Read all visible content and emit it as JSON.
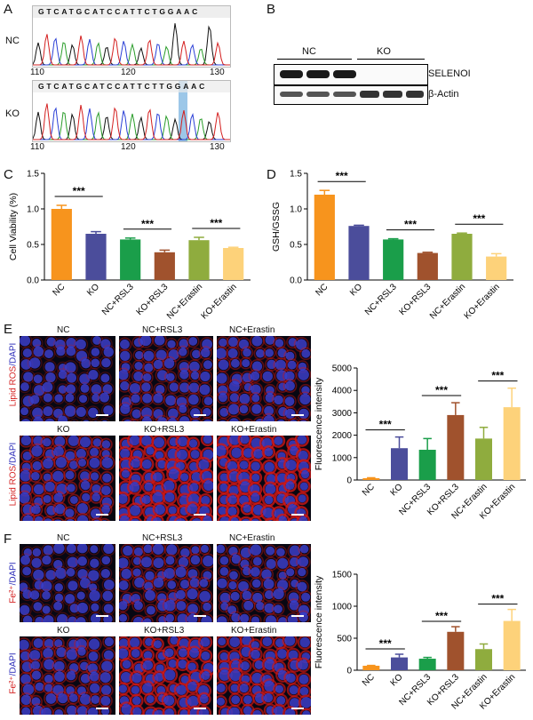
{
  "panels": {
    "A": "A",
    "B": "B",
    "C": "C",
    "D": "D",
    "E": "E",
    "F": "F"
  },
  "panelA": {
    "rows": [
      {
        "label": "NC",
        "sequence": "GTCATGCATCCATTCTGGAAC",
        "ticks": [
          "110",
          "120",
          "130"
        ]
      },
      {
        "label": "KO",
        "sequence": "GTCATGCATCCATTCTTGGAAC",
        "ticks": [
          "110",
          "120",
          "130"
        ]
      }
    ],
    "highlight_color": "#9cc7e8"
  },
  "panelB": {
    "groups": [
      "NC",
      "KO"
    ],
    "bands": [
      "SELENOI",
      "β-Actin"
    ]
  },
  "panelE": {
    "columns": [
      "NC",
      "NC+RSL3",
      "NC+Erastin"
    ],
    "columns_row2": [
      "KO",
      "KO+RSL3",
      "KO+Erastin"
    ],
    "stain_red": "Lipid ROS",
    "stain_blue": "/DAPI"
  },
  "panelF": {
    "columns": [
      "NC",
      "NC+RSL3",
      "NC+Erastin"
    ],
    "columns_row2": [
      "KO",
      "KO+RSL3",
      "KO+Erastin"
    ],
    "stain_red": "Fe²⁺",
    "stain_blue": "/DAPI"
  },
  "chart_data": [
    {
      "id": "C",
      "type": "bar",
      "categories": [
        "NC",
        "KO",
        "NC+RSL3",
        "KO+RSL3",
        "NC+Erastin",
        "KO+Erastin"
      ],
      "values": [
        1.0,
        0.65,
        0.57,
        0.39,
        0.56,
        0.45
      ],
      "errors": [
        0.05,
        0.03,
        0.02,
        0.03,
        0.04,
        0.01
      ],
      "colors": [
        "#f7941d",
        "#4b4d9b",
        "#1a9e4a",
        "#a0522d",
        "#8fac3e",
        "#fdd27a"
      ],
      "ylabel": "Cell Viability (%)",
      "ylim": [
        0,
        1.5
      ],
      "yticks": [
        "0.0",
        "0.5",
        "1.0",
        "1.5"
      ],
      "significance": [
        {
          "from": 0,
          "to": 1,
          "label": "***"
        },
        {
          "from": 2,
          "to": 3,
          "label": "***"
        },
        {
          "from": 4,
          "to": 5,
          "label": "***"
        }
      ]
    },
    {
      "id": "D",
      "type": "bar",
      "categories": [
        "NC",
        "KO",
        "NC+RSL3",
        "KO+RSL3",
        "NC+Erastin",
        "KO+Erastin"
      ],
      "values": [
        1.2,
        0.76,
        0.57,
        0.38,
        0.65,
        0.33
      ],
      "errors": [
        0.06,
        0.01,
        0.01,
        0.01,
        0.01,
        0.04
      ],
      "colors": [
        "#f7941d",
        "#4b4d9b",
        "#1a9e4a",
        "#a0522d",
        "#8fac3e",
        "#fdd27a"
      ],
      "ylabel": "GSH/GSSG",
      "ylim": [
        0,
        1.5
      ],
      "yticks": [
        "0.0",
        "0.5",
        "1.0",
        "1.5"
      ],
      "significance": [
        {
          "from": 0,
          "to": 1,
          "label": "***"
        },
        {
          "from": 2,
          "to": 3,
          "label": "***"
        },
        {
          "from": 4,
          "to": 5,
          "label": "***"
        }
      ]
    },
    {
      "id": "E",
      "type": "bar",
      "categories": [
        "NC",
        "KO",
        "NC+RSL3",
        "KO+RSL3",
        "NC+Erastin",
        "KO+Erastin"
      ],
      "values": [
        80,
        1420,
        1350,
        2900,
        1850,
        3250
      ],
      "errors": [
        20,
        500,
        500,
        550,
        500,
        850
      ],
      "colors": [
        "#f7941d",
        "#4b4d9b",
        "#1a9e4a",
        "#a0522d",
        "#8fac3e",
        "#fdd27a"
      ],
      "ylabel": "Fluorescence intensity",
      "ylim": [
        0,
        5000
      ],
      "yticks": [
        "0",
        "1000",
        "2000",
        "3000",
        "4000",
        "5000"
      ],
      "significance": [
        {
          "from": 0,
          "to": 1,
          "label": "***"
        },
        {
          "from": 2,
          "to": 3,
          "label": "***"
        },
        {
          "from": 4,
          "to": 5,
          "label": "***"
        }
      ]
    },
    {
      "id": "F",
      "type": "bar",
      "categories": [
        "NC",
        "KO",
        "NC+RSL3",
        "KO+RSL3",
        "NC+Erastin",
        "KO+Erastin"
      ],
      "values": [
        70,
        200,
        180,
        600,
        330,
        770
      ],
      "errors": [
        5,
        50,
        20,
        80,
        80,
        180
      ],
      "colors": [
        "#f7941d",
        "#4b4d9b",
        "#1a9e4a",
        "#a0522d",
        "#8fac3e",
        "#fdd27a"
      ],
      "ylabel": "Fluorescence intensity",
      "ylim": [
        0,
        1500
      ],
      "yticks": [
        "0",
        "500",
        "1000",
        "1500"
      ],
      "significance": [
        {
          "from": 0,
          "to": 1,
          "label": "***"
        },
        {
          "from": 2,
          "to": 3,
          "label": "***"
        },
        {
          "from": 4,
          "to": 5,
          "label": "***"
        }
      ]
    }
  ]
}
